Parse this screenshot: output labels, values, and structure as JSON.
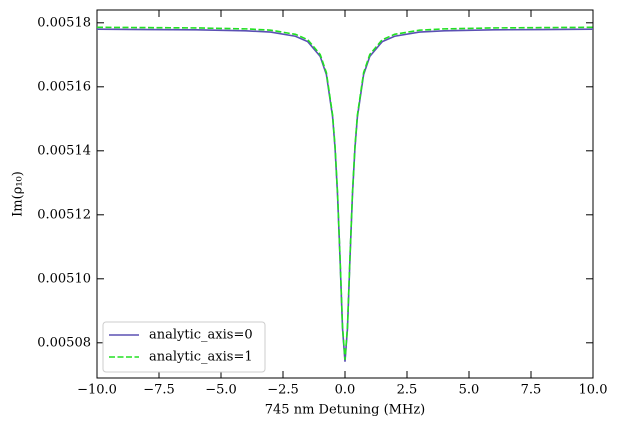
{
  "chart_data": {
    "type": "line",
    "x_label": "745 nm Detuning (MHz)",
    "y_label": "Im(ρ₁₀)",
    "x": [
      -10,
      -8,
      -6,
      -4,
      -3,
      -2,
      -1.5,
      -1,
      -0.75,
      -0.5,
      -0.4,
      -0.3,
      -0.2,
      -0.1,
      0,
      0.1,
      0.2,
      0.3,
      0.4,
      0.5,
      0.75,
      1,
      1.5,
      2,
      3,
      4,
      6,
      8,
      10
    ],
    "series": [
      {
        "name": "analytic_axis=0",
        "color": "#5b50b4",
        "linestyle": "solid",
        "values": [
          0.005178,
          0.0051779,
          0.0051778,
          0.0051775,
          0.0051771,
          0.0051758,
          0.0051741,
          0.0051695,
          0.0051638,
          0.0051506,
          0.0051407,
          0.0051261,
          0.0051061,
          0.0050845,
          0.0050741,
          0.0050845,
          0.0051061,
          0.0051261,
          0.0051407,
          0.0051506,
          0.0051638,
          0.0051695,
          0.0051741,
          0.0051758,
          0.0051771,
          0.0051775,
          0.0051778,
          0.0051779,
          0.005178
        ]
      },
      {
        "name": "analytic_axis=1",
        "color": "#22e022",
        "linestyle": "dashed",
        "values": [
          0.0051786,
          0.0051785,
          0.0051784,
          0.0051781,
          0.0051777,
          0.0051764,
          0.0051747,
          0.0051701,
          0.0051644,
          0.0051512,
          0.0051413,
          0.0051267,
          0.0051067,
          0.0050851,
          0.0050747,
          0.0050851,
          0.0051067,
          0.0051267,
          0.0051413,
          0.0051512,
          0.0051644,
          0.0051701,
          0.0051747,
          0.0051764,
          0.0051777,
          0.0051781,
          0.0051784,
          0.0051785,
          0.0051786
        ]
      }
    ],
    "xlim": [
      -10,
      10
    ],
    "xticks": [
      {
        "value": -10,
        "label": "−10.0"
      },
      {
        "value": -7.5,
        "label": "−7.5"
      },
      {
        "value": -5,
        "label": "−5.0"
      },
      {
        "value": -2.5,
        "label": "−2.5"
      },
      {
        "value": 0,
        "label": "0.0"
      },
      2.5,
      {
        "value": 5,
        "label": "5.0"
      },
      7.5,
      {
        "value": 10,
        "label": "10.0"
      }
    ],
    "ylim": [
      0.005069,
      0.005184
    ],
    "yticks": [
      0.00508,
      {
        "value": 0.0051,
        "label": "0.00510"
      },
      0.00512,
      0.00514,
      0.00516,
      0.00518
    ],
    "legend": "lower left",
    "grid": false
  }
}
